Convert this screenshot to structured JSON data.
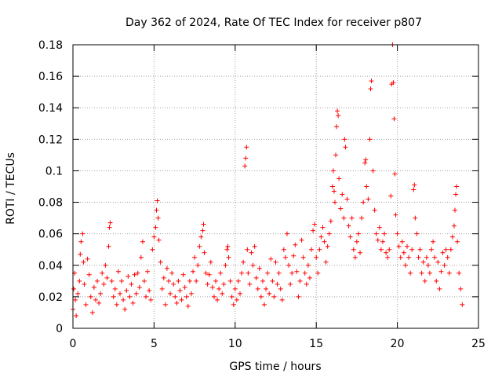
{
  "chart_data": {
    "type": "scatter",
    "title": "Day 362 of 2024, Rate Of TEC Index for receiver p807",
    "xlabel": "GPS time / hours",
    "ylabel": "ROTI / TECUs",
    "xlim": [
      0,
      25
    ],
    "ylim": [
      0,
      0.18
    ],
    "xticks": [
      0,
      5,
      10,
      15,
      20,
      25
    ],
    "xtick_labels": [
      "0",
      "5",
      "10",
      "15",
      "20",
      "25"
    ],
    "yticks": [
      0,
      0.02,
      0.04,
      0.06,
      0.08,
      0.1,
      0.12,
      0.14,
      0.16,
      0.18
    ],
    "ytick_labels": [
      "0",
      "0.02",
      "0.04",
      "0.06",
      "0.08",
      "0.1",
      "0.12",
      "0.14",
      "0.16",
      "0.18"
    ],
    "grid": true,
    "marker": "+",
    "series": [
      {
        "name": "ROTI",
        "color": "#ff0000",
        "points": [
          [
            0.0,
            0.012
          ],
          [
            0.05,
            0.025
          ],
          [
            0.1,
            0.035
          ],
          [
            0.15,
            0.018
          ],
          [
            0.2,
            0.008
          ],
          [
            0.3,
            0.022
          ],
          [
            0.4,
            0.03
          ],
          [
            0.45,
            0.047
          ],
          [
            0.5,
            0.055
          ],
          [
            0.6,
            0.06
          ],
          [
            0.65,
            0.042
          ],
          [
            0.7,
            0.028
          ],
          [
            0.8,
            0.015
          ],
          [
            0.9,
            0.044
          ],
          [
            1.0,
            0.034
          ],
          [
            1.1,
            0.02
          ],
          [
            1.2,
            0.01
          ],
          [
            1.3,
            0.026
          ],
          [
            1.4,
            0.018
          ],
          [
            1.5,
            0.03
          ],
          [
            1.6,
            0.016
          ],
          [
            1.7,
            0.022
          ],
          [
            1.8,
            0.035
          ],
          [
            1.9,
            0.028
          ],
          [
            2.0,
            0.04
          ],
          [
            2.1,
            0.032
          ],
          [
            2.2,
            0.052
          ],
          [
            2.25,
            0.064
          ],
          [
            2.3,
            0.067
          ],
          [
            2.4,
            0.03
          ],
          [
            2.5,
            0.02
          ],
          [
            2.6,
            0.025
          ],
          [
            2.7,
            0.015
          ],
          [
            2.8,
            0.036
          ],
          [
            2.9,
            0.022
          ],
          [
            3.0,
            0.03
          ],
          [
            3.1,
            0.018
          ],
          [
            3.2,
            0.012
          ],
          [
            3.3,
            0.024
          ],
          [
            3.4,
            0.033
          ],
          [
            3.5,
            0.02
          ],
          [
            3.6,
            0.028
          ],
          [
            3.7,
            0.016
          ],
          [
            3.8,
            0.034
          ],
          [
            3.9,
            0.022
          ],
          [
            4.0,
            0.035
          ],
          [
            4.1,
            0.026
          ],
          [
            4.2,
            0.045
          ],
          [
            4.3,
            0.055
          ],
          [
            4.4,
            0.03
          ],
          [
            4.5,
            0.02
          ],
          [
            4.6,
            0.036
          ],
          [
            4.7,
            0.024
          ],
          [
            4.8,
            0.018
          ],
          [
            4.9,
            0.05
          ],
          [
            5.0,
            0.058
          ],
          [
            5.1,
            0.064
          ],
          [
            5.15,
            0.075
          ],
          [
            5.2,
            0.081
          ],
          [
            5.25,
            0.07
          ],
          [
            5.3,
            0.056
          ],
          [
            5.4,
            0.042
          ],
          [
            5.5,
            0.025
          ],
          [
            5.6,
            0.032
          ],
          [
            5.7,
            0.015
          ],
          [
            5.8,
            0.038
          ],
          [
            5.9,
            0.03
          ],
          [
            6.0,
            0.022
          ],
          [
            6.1,
            0.035
          ],
          [
            6.2,
            0.028
          ],
          [
            6.3,
            0.02
          ],
          [
            6.4,
            0.016
          ],
          [
            6.5,
            0.03
          ],
          [
            6.6,
            0.024
          ],
          [
            6.7,
            0.018
          ],
          [
            6.8,
            0.034
          ],
          [
            6.9,
            0.026
          ],
          [
            7.0,
            0.02
          ],
          [
            7.1,
            0.014
          ],
          [
            7.2,
            0.03
          ],
          [
            7.3,
            0.022
          ],
          [
            7.4,
            0.036
          ],
          [
            7.5,
            0.045
          ],
          [
            7.6,
            0.03
          ],
          [
            7.7,
            0.04
          ],
          [
            7.8,
            0.052
          ],
          [
            7.9,
            0.058
          ],
          [
            8.0,
            0.062
          ],
          [
            8.05,
            0.066
          ],
          [
            8.1,
            0.048
          ],
          [
            8.2,
            0.035
          ],
          [
            8.3,
            0.028
          ],
          [
            8.4,
            0.034
          ],
          [
            8.5,
            0.042
          ],
          [
            8.6,
            0.026
          ],
          [
            8.7,
            0.02
          ],
          [
            8.8,
            0.03
          ],
          [
            8.9,
            0.018
          ],
          [
            9.0,
            0.025
          ],
          [
            9.1,
            0.035
          ],
          [
            9.2,
            0.022
          ],
          [
            9.3,
            0.028
          ],
          [
            9.4,
            0.04
          ],
          [
            9.5,
            0.05
          ],
          [
            9.55,
            0.052
          ],
          [
            9.6,
            0.045
          ],
          [
            9.7,
            0.03
          ],
          [
            9.8,
            0.02
          ],
          [
            9.9,
            0.015
          ],
          [
            10.0,
            0.025
          ],
          [
            10.1,
            0.018
          ],
          [
            10.2,
            0.03
          ],
          [
            10.3,
            0.022
          ],
          [
            10.4,
            0.035
          ],
          [
            10.5,
            0.042
          ],
          [
            10.6,
            0.103
          ],
          [
            10.65,
            0.108
          ],
          [
            10.7,
            0.115
          ],
          [
            10.75,
            0.05
          ],
          [
            10.8,
            0.035
          ],
          [
            10.9,
            0.028
          ],
          [
            11.0,
            0.048
          ],
          [
            11.1,
            0.04
          ],
          [
            11.2,
            0.052
          ],
          [
            11.3,
            0.032
          ],
          [
            11.4,
            0.025
          ],
          [
            11.5,
            0.038
          ],
          [
            11.6,
            0.02
          ],
          [
            11.7,
            0.03
          ],
          [
            11.8,
            0.015
          ],
          [
            11.9,
            0.025
          ],
          [
            12.0,
            0.035
          ],
          [
            12.1,
            0.022
          ],
          [
            12.2,
            0.044
          ],
          [
            12.3,
            0.03
          ],
          [
            12.4,
            0.02
          ],
          [
            12.5,
            0.042
          ],
          [
            12.6,
            0.028
          ],
          [
            12.7,
            0.035
          ],
          [
            12.8,
            0.025
          ],
          [
            12.9,
            0.018
          ],
          [
            13.0,
            0.05
          ],
          [
            13.1,
            0.045
          ],
          [
            13.2,
            0.06
          ],
          [
            13.3,
            0.04
          ],
          [
            13.4,
            0.028
          ],
          [
            13.5,
            0.035
          ],
          [
            13.6,
            0.046
          ],
          [
            13.7,
            0.053
          ],
          [
            13.8,
            0.036
          ],
          [
            13.9,
            0.02
          ],
          [
            14.0,
            0.03
          ],
          [
            14.1,
            0.056
          ],
          [
            14.2,
            0.045
          ],
          [
            14.3,
            0.035
          ],
          [
            14.4,
            0.028
          ],
          [
            14.5,
            0.04
          ],
          [
            14.6,
            0.032
          ],
          [
            14.7,
            0.05
          ],
          [
            14.8,
            0.062
          ],
          [
            14.9,
            0.066
          ],
          [
            15.0,
            0.045
          ],
          [
            15.1,
            0.035
          ],
          [
            15.2,
            0.05
          ],
          [
            15.3,
            0.058
          ],
          [
            15.4,
            0.064
          ],
          [
            15.5,
            0.055
          ],
          [
            15.6,
            0.042
          ],
          [
            15.7,
            0.052
          ],
          [
            15.8,
            0.06
          ],
          [
            15.9,
            0.068
          ],
          [
            16.0,
            0.09
          ],
          [
            16.05,
            0.1
          ],
          [
            16.1,
            0.087
          ],
          [
            16.15,
            0.08
          ],
          [
            16.2,
            0.11
          ],
          [
            16.25,
            0.128
          ],
          [
            16.3,
            0.138
          ],
          [
            16.35,
            0.135
          ],
          [
            16.4,
            0.095
          ],
          [
            16.5,
            0.076
          ],
          [
            16.6,
            0.085
          ],
          [
            16.7,
            0.07
          ],
          [
            16.75,
            0.12
          ],
          [
            16.8,
            0.115
          ],
          [
            16.9,
            0.082
          ],
          [
            17.0,
            0.065
          ],
          [
            17.1,
            0.058
          ],
          [
            17.2,
            0.07
          ],
          [
            17.3,
            0.05
          ],
          [
            17.4,
            0.045
          ],
          [
            17.5,
            0.055
          ],
          [
            17.6,
            0.06
          ],
          [
            17.7,
            0.048
          ],
          [
            17.8,
            0.07
          ],
          [
            17.9,
            0.08
          ],
          [
            18.0,
            0.105
          ],
          [
            18.05,
            0.107
          ],
          [
            18.1,
            0.09
          ],
          [
            18.2,
            0.082
          ],
          [
            18.3,
            0.12
          ],
          [
            18.35,
            0.152
          ],
          [
            18.4,
            0.157
          ],
          [
            18.5,
            0.1
          ],
          [
            18.6,
            0.075
          ],
          [
            18.7,
            0.06
          ],
          [
            18.8,
            0.056
          ],
          [
            18.9,
            0.064
          ],
          [
            19.0,
            0.05
          ],
          [
            19.1,
            0.055
          ],
          [
            19.2,
            0.06
          ],
          [
            19.3,
            0.048
          ],
          [
            19.4,
            0.045
          ],
          [
            19.5,
            0.05
          ],
          [
            19.6,
            0.084
          ],
          [
            19.65,
            0.155
          ],
          [
            19.7,
            0.18
          ],
          [
            19.75,
            0.156
          ],
          [
            19.8,
            0.133
          ],
          [
            19.85,
            0.098
          ],
          [
            19.9,
            0.072
          ],
          [
            20.0,
            0.06
          ],
          [
            20.1,
            0.052
          ],
          [
            20.2,
            0.045
          ],
          [
            20.3,
            0.055
          ],
          [
            20.4,
            0.048
          ],
          [
            20.5,
            0.04
          ],
          [
            20.6,
            0.052
          ],
          [
            20.7,
            0.045
          ],
          [
            20.8,
            0.035
          ],
          [
            20.9,
            0.05
          ],
          [
            21.0,
            0.088
          ],
          [
            21.05,
            0.091
          ],
          [
            21.1,
            0.07
          ],
          [
            21.2,
            0.06
          ],
          [
            21.3,
            0.045
          ],
          [
            21.4,
            0.05
          ],
          [
            21.5,
            0.035
          ],
          [
            21.6,
            0.042
          ],
          [
            21.7,
            0.03
          ],
          [
            21.8,
            0.045
          ],
          [
            21.9,
            0.04
          ],
          [
            22.0,
            0.035
          ],
          [
            22.1,
            0.05
          ],
          [
            22.2,
            0.055
          ],
          [
            22.3,
            0.045
          ],
          [
            22.4,
            0.03
          ],
          [
            22.5,
            0.042
          ],
          [
            22.6,
            0.025
          ],
          [
            22.7,
            0.036
          ],
          [
            22.8,
            0.048
          ],
          [
            22.9,
            0.04
          ],
          [
            23.0,
            0.05
          ],
          [
            23.1,
            0.045
          ],
          [
            23.2,
            0.035
          ],
          [
            23.3,
            0.05
          ],
          [
            23.4,
            0.058
          ],
          [
            23.5,
            0.065
          ],
          [
            23.55,
            0.075
          ],
          [
            23.6,
            0.085
          ],
          [
            23.65,
            0.09
          ],
          [
            23.7,
            0.055
          ],
          [
            23.8,
            0.035
          ],
          [
            23.9,
            0.025
          ],
          [
            24.0,
            0.015
          ]
        ]
      }
    ]
  }
}
